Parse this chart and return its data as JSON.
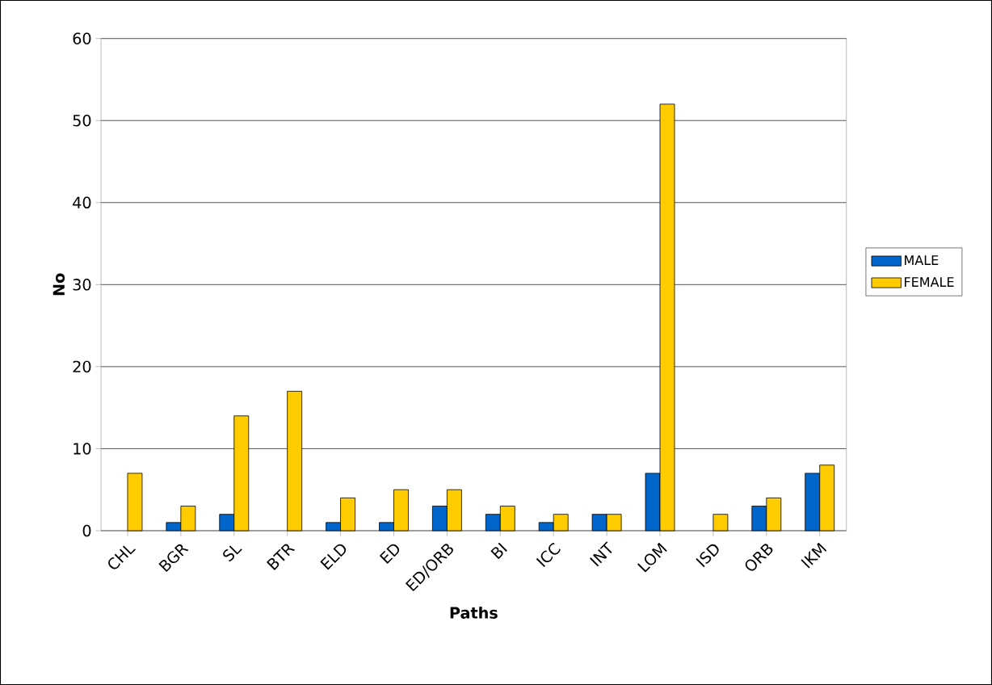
{
  "chart_data": {
    "type": "bar",
    "categories": [
      "CHL",
      "BGR",
      "SL",
      "BTR",
      "ELD",
      "ED",
      "ED/ORB",
      "BI",
      "ICC",
      "INT",
      "LOM",
      "ISD",
      "ORB",
      "IKM"
    ],
    "series": [
      {
        "name": "MALE",
        "color": "#0066cc",
        "values": [
          null,
          1,
          2,
          null,
          1,
          1,
          3,
          2,
          1,
          2,
          7,
          null,
          3,
          7
        ]
      },
      {
        "name": "FEMALE",
        "color": "#ffcc00",
        "values": [
          7,
          3,
          14,
          17,
          4,
          5,
          5,
          3,
          2,
          2,
          52,
          2,
          4,
          8
        ]
      }
    ],
    "xlabel": "Paths",
    "ylabel": "No",
    "ylim": [
      0,
      60
    ],
    "yticks": [
      0,
      10,
      20,
      30,
      40,
      50,
      60
    ],
    "grid": "y",
    "legend": "right"
  }
}
